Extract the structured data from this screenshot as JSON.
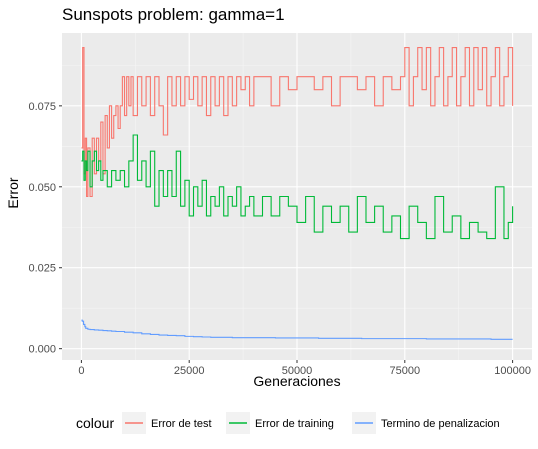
{
  "chart_data": {
    "type": "line",
    "title": "Sunspots problem: gamma=1",
    "xlabel": "Generaciones",
    "ylabel": "Error",
    "xlim": [
      -4500,
      104500
    ],
    "ylim": [
      -0.0035,
      0.0975
    ],
    "xticks": [
      {
        "value": 0,
        "label": "0"
      },
      {
        "value": 25000,
        "label": "25000"
      },
      {
        "value": 50000,
        "label": "50000"
      },
      {
        "value": 75000,
        "label": "75000"
      },
      {
        "value": 100000,
        "label": "100000"
      }
    ],
    "yticks": [
      {
        "value": 0.0,
        "label": "0.000"
      },
      {
        "value": 0.025,
        "label": "0.025"
      },
      {
        "value": 0.05,
        "label": "0.050"
      },
      {
        "value": 0.075,
        "label": "0.075"
      }
    ],
    "grid": true,
    "legend": {
      "title": "colour",
      "placement": "bottom"
    },
    "series": [
      {
        "name": "Error de test",
        "color": "#F8766D",
        "x": [
          0,
          300,
          600,
          900,
          1200,
          1500,
          2000,
          2500,
          3000,
          3500,
          4000,
          4500,
          5000,
          5500,
          6000,
          6500,
          7000,
          7500,
          8000,
          8500,
          9000,
          9500,
          10000,
          10500,
          11000,
          11500,
          12000,
          13000,
          14000,
          15000,
          16000,
          17000,
          18000,
          19000,
          20000,
          21000,
          22000,
          23000,
          24000,
          25000,
          26000,
          27000,
          28000,
          29000,
          30000,
          31000,
          32000,
          33000,
          34000,
          35000,
          36000,
          37000,
          38000,
          39000,
          40000,
          42000,
          44000,
          46000,
          48000,
          50000,
          52000,
          54000,
          56000,
          58000,
          60000,
          62000,
          64000,
          66000,
          68000,
          70000,
          72000,
          74000,
          75000,
          76000,
          77000,
          78000,
          79000,
          80000,
          81000,
          82000,
          83000,
          84000,
          85000,
          86000,
          87000,
          88000,
          89000,
          90000,
          91000,
          92000,
          93000,
          94000,
          95000,
          96000,
          97000,
          98000,
          99000,
          100000
        ],
        "y": [
          0.062,
          0.093,
          0.054,
          0.065,
          0.047,
          0.062,
          0.047,
          0.065,
          0.054,
          0.065,
          0.058,
          0.07,
          0.054,
          0.072,
          0.062,
          0.075,
          0.065,
          0.072,
          0.075,
          0.068,
          0.075,
          0.084,
          0.072,
          0.084,
          0.075,
          0.084,
          0.072,
          0.084,
          0.075,
          0.084,
          0.072,
          0.084,
          0.075,
          0.066,
          0.084,
          0.075,
          0.084,
          0.075,
          0.084,
          0.077,
          0.084,
          0.075,
          0.084,
          0.072,
          0.084,
          0.075,
          0.084,
          0.072,
          0.084,
          0.075,
          0.084,
          0.08,
          0.084,
          0.075,
          0.084,
          0.084,
          0.075,
          0.084,
          0.08,
          0.084,
          0.084,
          0.08,
          0.084,
          0.075,
          0.084,
          0.084,
          0.08,
          0.084,
          0.075,
          0.084,
          0.08,
          0.084,
          0.093,
          0.075,
          0.084,
          0.093,
          0.08,
          0.093,
          0.075,
          0.084,
          0.093,
          0.075,
          0.084,
          0.093,
          0.075,
          0.084,
          0.093,
          0.075,
          0.093,
          0.08,
          0.093,
          0.075,
          0.084,
          0.093,
          0.075,
          0.084,
          0.093,
          0.075
        ]
      },
      {
        "name": "Error de training",
        "color": "#00BA38",
        "x": [
          0,
          300,
          600,
          900,
          1200,
          1500,
          2000,
          2500,
          3000,
          3500,
          4000,
          4500,
          5000,
          6000,
          7000,
          8000,
          9000,
          10000,
          11000,
          12000,
          13000,
          14000,
          15000,
          16000,
          17000,
          18000,
          19000,
          20000,
          21000,
          22000,
          23000,
          24000,
          25000,
          26000,
          27000,
          28000,
          29000,
          30000,
          31000,
          32000,
          33000,
          34000,
          35000,
          36000,
          37000,
          38000,
          39000,
          40000,
          42000,
          44000,
          46000,
          48000,
          50000,
          52000,
          54000,
          56000,
          58000,
          60000,
          62000,
          64000,
          66000,
          68000,
          70000,
          72000,
          74000,
          76000,
          78000,
          80000,
          82000,
          84000,
          86000,
          88000,
          90000,
          92000,
          94000,
          96000,
          98000,
          99000,
          100000
        ],
        "y": [
          0.058,
          0.061,
          0.052,
          0.058,
          0.055,
          0.061,
          0.05,
          0.058,
          0.061,
          0.055,
          0.058,
          0.052,
          0.055,
          0.05,
          0.055,
          0.052,
          0.055,
          0.05,
          0.058,
          0.066,
          0.052,
          0.058,
          0.05,
          0.061,
          0.044,
          0.055,
          0.047,
          0.055,
          0.047,
          0.061,
          0.044,
          0.052,
          0.041,
          0.05,
          0.044,
          0.052,
          0.041,
          0.047,
          0.044,
          0.05,
          0.041,
          0.047,
          0.044,
          0.05,
          0.041,
          0.044,
          0.047,
          0.041,
          0.047,
          0.041,
          0.047,
          0.044,
          0.039,
          0.047,
          0.036,
          0.044,
          0.039,
          0.044,
          0.036,
          0.047,
          0.039,
          0.044,
          0.036,
          0.041,
          0.034,
          0.044,
          0.039,
          0.034,
          0.047,
          0.036,
          0.041,
          0.034,
          0.039,
          0.036,
          0.034,
          0.05,
          0.034,
          0.039,
          0.044
        ]
      },
      {
        "name": "Termino de penalizacion",
        "color": "#619CFF",
        "x": [
          0,
          200,
          500,
          800,
          1000,
          1500,
          2000,
          3000,
          4000,
          5000,
          6000,
          7000,
          8000,
          10000,
          12000,
          14000,
          16000,
          18000,
          20000,
          22000,
          24000,
          26000,
          28000,
          30000,
          35000,
          40000,
          45000,
          50000,
          55000,
          60000,
          65000,
          70000,
          75000,
          80000,
          85000,
          90000,
          95000,
          100000
        ],
        "y": [
          0.0088,
          0.0085,
          0.0075,
          0.0068,
          0.0063,
          0.006,
          0.0059,
          0.0058,
          0.0057,
          0.0056,
          0.0055,
          0.0054,
          0.0053,
          0.0051,
          0.0049,
          0.0046,
          0.0044,
          0.0042,
          0.0041,
          0.004,
          0.0038,
          0.0037,
          0.0036,
          0.0035,
          0.0034,
          0.0034,
          0.0033,
          0.0033,
          0.0032,
          0.0032,
          0.0031,
          0.0031,
          0.0031,
          0.003,
          0.003,
          0.003,
          0.0029,
          0.0029
        ]
      }
    ]
  }
}
